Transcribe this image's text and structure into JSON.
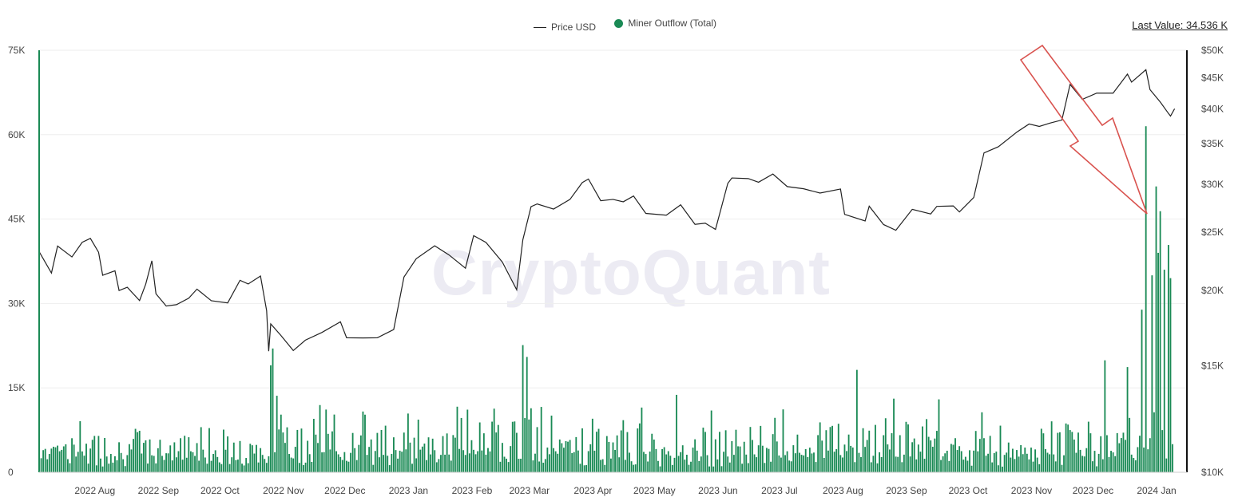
{
  "legend": {
    "price_label": "Price USD",
    "outflow_label": "Miner Outflow (Total)"
  },
  "last_value": "Last Value: 34.536 K",
  "watermark": "CryptoQuant",
  "colors": {
    "bars": "#1a8a55",
    "price": "#222222",
    "arrow": "#d9534f",
    "grid": "#eeeeee"
  },
  "chart_data": {
    "type": "bar+line",
    "x_range": [
      "2022-07-20",
      "2024-01-31"
    ],
    "x_ticks": [
      {
        "date": "2022-08-01",
        "label": "2022 Aug"
      },
      {
        "date": "2022-09-01",
        "label": "2022 Sep"
      },
      {
        "date": "2022-10-01",
        "label": "2022 Oct"
      },
      {
        "date": "2022-11-01",
        "label": "2022 Nov"
      },
      {
        "date": "2022-12-01",
        "label": "2022 Dec"
      },
      {
        "date": "2023-01-01",
        "label": "2023 Jan"
      },
      {
        "date": "2023-02-01",
        "label": "2023 Feb"
      },
      {
        "date": "2023-03-01",
        "label": "2023 Mar"
      },
      {
        "date": "2023-04-01",
        "label": "2023 Apr"
      },
      {
        "date": "2023-05-01",
        "label": "2023 May"
      },
      {
        "date": "2023-06-01",
        "label": "2023 Jun"
      },
      {
        "date": "2023-07-01",
        "label": "2023 Jul"
      },
      {
        "date": "2023-08-01",
        "label": "2023 Aug"
      },
      {
        "date": "2023-09-01",
        "label": "2023 Sep"
      },
      {
        "date": "2023-10-01",
        "label": "2023 Oct"
      },
      {
        "date": "2023-11-01",
        "label": "2023 Nov"
      },
      {
        "date": "2023-12-01",
        "label": "2023 Dec"
      },
      {
        "date": "2024-01-01",
        "label": "2024 Jan"
      }
    ],
    "left_axis": {
      "series": "Miner Outflow (Total)",
      "min": 0,
      "max": 75000,
      "ticks": [
        {
          "value": 0,
          "label": "0"
        },
        {
          "value": 15000,
          "label": "15K"
        },
        {
          "value": 30000,
          "label": "30K"
        },
        {
          "value": 45000,
          "label": "45K"
        },
        {
          "value": 60000,
          "label": "60K"
        },
        {
          "value": 75000,
          "label": "75K"
        }
      ]
    },
    "right_axis": {
      "series": "Price USD",
      "scale": "log",
      "min": 10000,
      "max": 50000,
      "ticks": [
        {
          "value": 10000,
          "label": "$10K"
        },
        {
          "value": 15000,
          "label": "$15K"
        },
        {
          "value": 20000,
          "label": "$20K"
        },
        {
          "value": 25000,
          "label": "$25K"
        },
        {
          "value": 30000,
          "label": "$30K"
        },
        {
          "value": 35000,
          "label": "$35K"
        },
        {
          "value": 40000,
          "label": "$40K"
        },
        {
          "value": 45000,
          "label": "$45K"
        },
        {
          "value": 50000,
          "label": "$50K"
        }
      ]
    },
    "grid": true,
    "legend_position": "top-center",
    "series": [
      {
        "name": "Price USD",
        "type": "line",
        "axis": "right",
        "points": [
          [
            "2022-07-20",
            23200
          ],
          [
            "2022-07-26",
            21300
          ],
          [
            "2022-07-29",
            23800
          ],
          [
            "2022-08-05",
            22900
          ],
          [
            "2022-08-10",
            23900
          ],
          [
            "2022-08-14",
            24400
          ],
          [
            "2022-08-18",
            23300
          ],
          [
            "2022-08-20",
            21200
          ],
          [
            "2022-08-26",
            21600
          ],
          [
            "2022-08-28",
            20000
          ],
          [
            "2022-09-01",
            20100
          ],
          [
            "2022-09-07",
            19300
          ],
          [
            "2022-09-10",
            20400
          ],
          [
            "2022-09-13",
            22300
          ],
          [
            "2022-09-15",
            19700
          ],
          [
            "2022-09-20",
            18900
          ],
          [
            "2022-09-25",
            19000
          ],
          [
            "2022-10-01",
            19300
          ],
          [
            "2022-10-05",
            20100
          ],
          [
            "2022-10-12",
            19100
          ],
          [
            "2022-10-20",
            19100
          ],
          [
            "2022-10-26",
            20700
          ],
          [
            "2022-10-30",
            20600
          ],
          [
            "2022-11-05",
            21100
          ],
          [
            "2022-11-08",
            18500
          ],
          [
            "2022-11-09",
            15900
          ],
          [
            "2022-11-10",
            17500
          ],
          [
            "2022-11-15",
            16900
          ],
          [
            "2022-11-21",
            15800
          ],
          [
            "2022-11-27",
            16500
          ],
          [
            "2022-12-05",
            17100
          ],
          [
            "2022-12-14",
            17800
          ],
          [
            "2022-12-17",
            16700
          ],
          [
            "2022-12-25",
            16800
          ],
          [
            "2023-01-01",
            16600
          ],
          [
            "2023-01-09",
            17200
          ],
          [
            "2023-01-14",
            20900
          ],
          [
            "2023-01-20",
            22700
          ],
          [
            "2023-01-29",
            23700
          ],
          [
            "2023-02-05",
            22900
          ],
          [
            "2023-02-13",
            21800
          ],
          [
            "2023-02-17",
            24600
          ],
          [
            "2023-02-23",
            24200
          ],
          [
            "2023-03-03",
            22400
          ],
          [
            "2023-03-10",
            20100
          ],
          [
            "2023-03-13",
            24100
          ],
          [
            "2023-03-17",
            27400
          ],
          [
            "2023-03-20",
            28000
          ],
          [
            "2023-03-28",
            27200
          ],
          [
            "2023-04-05",
            28200
          ],
          [
            "2023-04-11",
            30300
          ],
          [
            "2023-04-14",
            30500
          ],
          [
            "2023-04-20",
            28200
          ],
          [
            "2023-04-26",
            28400
          ],
          [
            "2023-05-01",
            28100
          ],
          [
            "2023-05-06",
            28800
          ],
          [
            "2023-05-12",
            26800
          ],
          [
            "2023-05-22",
            26800
          ],
          [
            "2023-05-29",
            27700
          ],
          [
            "2023-06-05",
            25700
          ],
          [
            "2023-06-10",
            25900
          ],
          [
            "2023-06-15",
            25100
          ],
          [
            "2023-06-21",
            30000
          ],
          [
            "2023-06-23",
            30700
          ],
          [
            "2023-07-01",
            30600
          ],
          [
            "2023-07-06",
            30300
          ],
          [
            "2023-07-13",
            31400
          ],
          [
            "2023-07-20",
            29900
          ],
          [
            "2023-07-28",
            29300
          ],
          [
            "2023-08-05",
            29100
          ],
          [
            "2023-08-15",
            29300
          ],
          [
            "2023-08-17",
            26600
          ],
          [
            "2023-08-27",
            26000
          ],
          [
            "2023-08-29",
            27700
          ],
          [
            "2023-09-05",
            25700
          ],
          [
            "2023-09-11",
            25100
          ],
          [
            "2023-09-19",
            27200
          ],
          [
            "2023-09-28",
            26800
          ],
          [
            "2023-10-01",
            27500
          ],
          [
            "2023-10-09",
            27600
          ],
          [
            "2023-10-12",
            26800
          ],
          [
            "2023-10-19",
            28700
          ],
          [
            "2023-10-24",
            33900
          ],
          [
            "2023-10-31",
            34600
          ],
          [
            "2023-11-09",
            36700
          ],
          [
            "2023-11-15",
            37800
          ],
          [
            "2023-11-20",
            37400
          ],
          [
            "2023-11-25",
            37700
          ],
          [
            "2023-12-01",
            38500
          ],
          [
            "2023-12-05",
            44000
          ],
          [
            "2023-12-11",
            41200
          ],
          [
            "2023-12-18",
            42700
          ],
          [
            "2023-12-26",
            42500
          ],
          [
            "2024-01-02",
            45900
          ],
          [
            "2024-01-04",
            44200
          ],
          [
            "2024-01-11",
            46600
          ],
          [
            "2024-01-13",
            42800
          ],
          [
            "2024-01-18",
            41300
          ],
          [
            "2024-01-22",
            39500
          ],
          [
            "2024-01-23",
            38900
          ],
          [
            "2024-01-25",
            40000
          ]
        ]
      },
      {
        "name": "Miner Outflow (Total)",
        "type": "bar",
        "axis": "left",
        "highlights": [
          [
            "2022-07-20",
            75000
          ],
          [
            "2022-11-10",
            19000
          ],
          [
            "2022-11-11",
            22000
          ],
          [
            "2022-11-13",
            13600
          ],
          [
            "2023-03-13",
            22600
          ],
          [
            "2023-03-15",
            20500
          ],
          [
            "2023-08-23",
            18200
          ],
          [
            "2023-12-22",
            19900
          ],
          [
            "2024-01-02",
            18700
          ],
          [
            "2024-01-09",
            28900
          ],
          [
            "2024-01-11",
            61500
          ],
          [
            "2024-01-14",
            35000
          ],
          [
            "2024-01-16",
            50800
          ],
          [
            "2024-01-17",
            39000
          ],
          [
            "2024-01-18",
            46400
          ],
          [
            "2024-01-20",
            36000
          ],
          [
            "2024-01-22",
            40400
          ],
          [
            "2024-01-23",
            34500
          ],
          [
            "2024-01-24",
            5000
          ]
        ]
      }
    ]
  }
}
